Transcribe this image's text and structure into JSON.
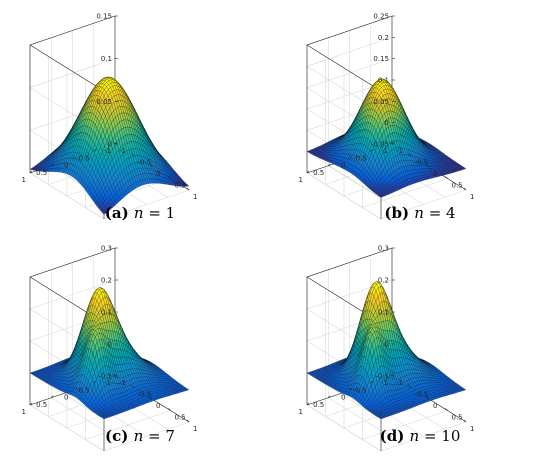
{
  "figure": {
    "colormap": "parula",
    "grid": true,
    "box": "full"
  },
  "chart_data": [
    {
      "type": "surface",
      "panel_label": "(a)",
      "caption_var": "n",
      "caption_eq": " = 1",
      "grid_size": 41,
      "x_range": [
        -1,
        1
      ],
      "y_range": [
        -1,
        1
      ],
      "z_range": [
        0,
        0.15
      ],
      "x_ticks": [
        "-1",
        "-0.5",
        "0",
        "0.5",
        "1"
      ],
      "y_ticks": [
        "-1",
        "-0.5",
        "0",
        "0.5",
        "1"
      ],
      "z_ticks": [
        "0",
        "0.05",
        "0.1",
        "0.15"
      ],
      "surface_terms": [
        {
          "amp": 0.117,
          "x0": 0.0,
          "y0": 0.0,
          "sx": 0.55,
          "sy": 0.55
        },
        {
          "amp": 0.02,
          "x0": 0.35,
          "y0": 0.45,
          "sx": 0.35,
          "sy": 0.35
        }
      ]
    },
    {
      "type": "surface",
      "panel_label": "(b)",
      "caption_var": "n",
      "caption_eq": " = 4",
      "grid_size": 41,
      "x_range": [
        -1,
        1
      ],
      "y_range": [
        -1,
        1
      ],
      "z_range": [
        -0.05,
        0.25
      ],
      "x_ticks": [
        "-1",
        "-0.5",
        "0",
        "0.5",
        "1"
      ],
      "y_ticks": [
        "-1",
        "-0.5",
        "0",
        "0.5",
        "1"
      ],
      "z_ticks": [
        "-0.05",
        "0",
        "0.05",
        "0.1",
        "0.15",
        "0.2",
        "0.25"
      ],
      "surface_terms": [
        {
          "amp": 0.185,
          "x0": -0.05,
          "y0": 0.05,
          "sx": 0.4,
          "sy": 0.4
        },
        {
          "amp": 0.06,
          "x0": 0.35,
          "y0": 0.45,
          "sx": 0.25,
          "sy": 0.25
        },
        {
          "amp": -0.02,
          "x0": -0.55,
          "y0": -0.5,
          "sx": 0.25,
          "sy": 0.25
        }
      ]
    },
    {
      "type": "surface",
      "panel_label": "(c)",
      "caption_var": "n",
      "caption_eq": " = 7",
      "grid_size": 41,
      "x_range": [
        -1,
        1
      ],
      "y_range": [
        -1,
        1
      ],
      "z_range": [
        -0.1,
        0.3
      ],
      "x_ticks": [
        "-1",
        "-0.5",
        "0",
        "0.5",
        "1"
      ],
      "y_ticks": [
        "-1",
        "-0.5",
        "0",
        "0.5",
        "1"
      ],
      "z_ticks": [
        "-0.1",
        "0",
        "0.1",
        "0.2",
        "0.3"
      ],
      "surface_terms": [
        {
          "amp": 0.22,
          "x0": -0.15,
          "y0": 0.15,
          "sx": 0.28,
          "sy": 0.28
        },
        {
          "amp": 0.14,
          "x0": 0.25,
          "y0": 0.55,
          "sx": 0.2,
          "sy": 0.2
        },
        {
          "amp": 0.1,
          "x0": 0.0,
          "y0": -0.2,
          "sx": 0.4,
          "sy": 0.4
        },
        {
          "amp": -0.05,
          "x0": -0.55,
          "y0": -0.55,
          "sx": 0.22,
          "sy": 0.22
        }
      ]
    },
    {
      "type": "surface",
      "panel_label": "(d)",
      "caption_var": "n",
      "caption_eq": " = 10",
      "grid_size": 41,
      "x_range": [
        -1,
        1
      ],
      "y_range": [
        -1,
        1
      ],
      "z_range": [
        -0.1,
        0.3
      ],
      "x_ticks": [
        "-1",
        "-0.5",
        "0",
        "0.5",
        "1"
      ],
      "y_ticks": [
        "-1",
        "-0.5",
        "0",
        "0.5",
        "1"
      ],
      "z_ticks": [
        "-0.1",
        "0",
        "0.1",
        "0.2",
        "0.3"
      ],
      "surface_terms": [
        {
          "amp": 0.24,
          "x0": -0.15,
          "y0": 0.15,
          "sx": 0.27,
          "sy": 0.27
        },
        {
          "amp": 0.15,
          "x0": 0.25,
          "y0": 0.55,
          "sx": 0.19,
          "sy": 0.19
        },
        {
          "amp": 0.1,
          "x0": 0.0,
          "y0": -0.2,
          "sx": 0.4,
          "sy": 0.4
        },
        {
          "amp": -0.05,
          "x0": -0.55,
          "y0": -0.55,
          "sx": 0.22,
          "sy": 0.22
        }
      ]
    }
  ]
}
